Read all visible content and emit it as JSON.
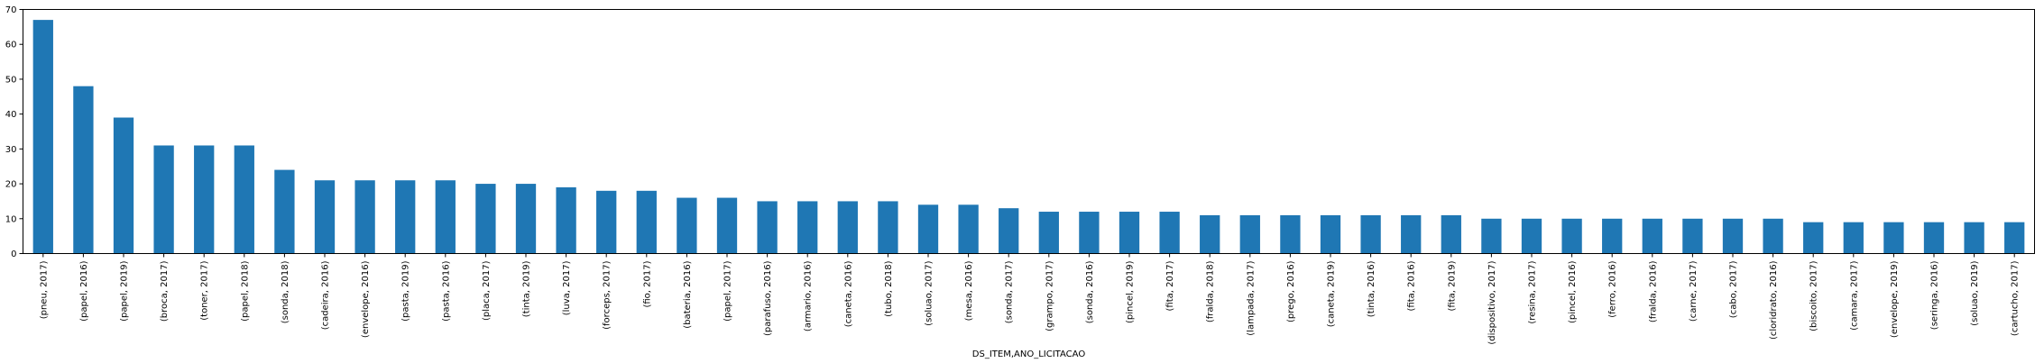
{
  "chart_data": {
    "type": "bar",
    "title": "",
    "xlabel": "DS_ITEM,ANO_LICITACAO",
    "ylabel": "",
    "ylim": [
      0,
      70
    ],
    "yticks": [
      0,
      10,
      20,
      30,
      40,
      50,
      60,
      70
    ],
    "grid": false,
    "legend": "none",
    "bar_color": "#1f77b4",
    "categories": [
      "(pneu, 2017)",
      "(papel, 2016)",
      "(papel, 2019)",
      "(broca, 2017)",
      "(toner, 2017)",
      "(papel, 2018)",
      "(sonda, 2018)",
      "(cadeira, 2016)",
      "(envelope, 2016)",
      "(pasta, 2019)",
      "(pasta, 2016)",
      "(placa, 2017)",
      "(tinta, 2019)",
      "(luva, 2017)",
      "(forceps, 2017)",
      "(fio, 2017)",
      "(bateria, 2016)",
      "(papel, 2017)",
      "(parafuso, 2016)",
      "(armario, 2016)",
      "(caneta, 2016)",
      "(tubo, 2018)",
      "(soluao, 2017)",
      "(mesa, 2016)",
      "(sonda, 2017)",
      "(grampo, 2017)",
      "(sonda, 2016)",
      "(pincel, 2019)",
      "(fita, 2017)",
      "(fralda, 2018)",
      "(lampada, 2017)",
      "(prego, 2016)",
      "(caneta, 2019)",
      "(tinta, 2016)",
      "(fita, 2016)",
      "(fita, 2019)",
      "(dispositivo, 2017)",
      "(resina, 2017)",
      "(pincel, 2016)",
      "(ferro, 2016)",
      "(fralda, 2016)",
      "(carne, 2017)",
      "(cabo, 2017)",
      "(cloridrato, 2016)",
      "(biscoito, 2017)",
      "(camara, 2017)",
      "(envelope, 2019)",
      "(seringa, 2016)",
      "(soluao, 2019)",
      "(cartucho, 2017)"
    ],
    "values": [
      67,
      48,
      39,
      31,
      31,
      31,
      24,
      21,
      21,
      21,
      21,
      20,
      20,
      19,
      18,
      18,
      16,
      16,
      15,
      15,
      15,
      15,
      14,
      14,
      13,
      12,
      12,
      12,
      12,
      11,
      11,
      11,
      11,
      11,
      11,
      11,
      10,
      10,
      10,
      10,
      10,
      10,
      10,
      10,
      9,
      9,
      9,
      9,
      9,
      9
    ]
  }
}
